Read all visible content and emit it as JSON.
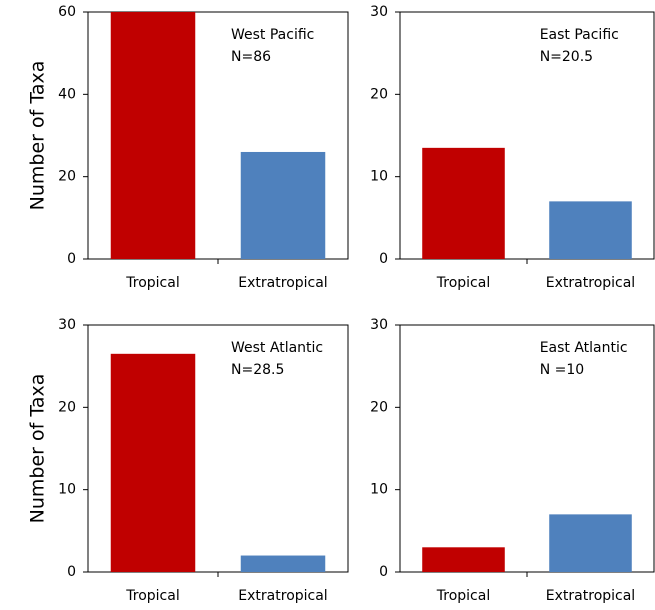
{
  "chart_data": [
    {
      "type": "bar",
      "ylabel": "Number of Taxa",
      "annotations": [
        "West Pacific",
        "N=86"
      ],
      "categories": [
        "Tropical",
        "Extratropical"
      ],
      "values": [
        60,
        26
      ],
      "colors": [
        "#c00000",
        "#4f81bd"
      ],
      "ylim": [
        0,
        60
      ],
      "yticks": [
        0,
        20,
        40,
        60
      ]
    },
    {
      "type": "bar",
      "annotations": [
        "East Pacific",
        "N=20.5"
      ],
      "categories": [
        "Tropical",
        "Extratropical"
      ],
      "values": [
        13.5,
        7
      ],
      "colors": [
        "#c00000",
        "#4f81bd"
      ],
      "ylim": [
        0,
        30
      ],
      "yticks": [
        0,
        10,
        20,
        30
      ]
    },
    {
      "type": "bar",
      "ylabel": "Number of Taxa",
      "annotations": [
        "West Atlantic",
        "N=28.5"
      ],
      "categories": [
        "Tropical",
        "Extratropical"
      ],
      "values": [
        26.5,
        2
      ],
      "colors": [
        "#c00000",
        "#4f81bd"
      ],
      "ylim": [
        0,
        30
      ],
      "yticks": [
        0,
        10,
        20,
        30
      ]
    },
    {
      "type": "bar",
      "annotations": [
        "East Atlantic",
        "N =10"
      ],
      "categories": [
        "Tropical",
        "Extratropical"
      ],
      "values": [
        3,
        7
      ],
      "colors": [
        "#c00000",
        "#4f81bd"
      ],
      "ylim": [
        0,
        30
      ],
      "yticks": [
        0,
        10,
        20,
        30
      ]
    }
  ]
}
